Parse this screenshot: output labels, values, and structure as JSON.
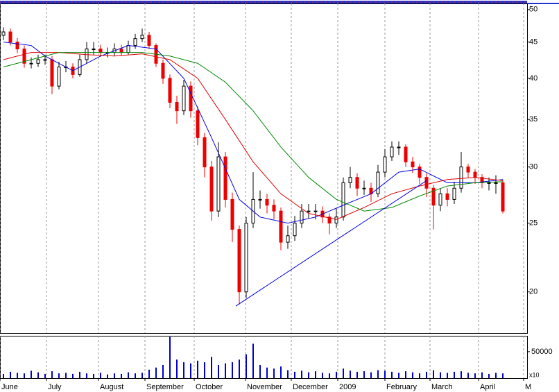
{
  "chart_data": {
    "type": "candlestick",
    "x": [
      0,
      1,
      2,
      3,
      4,
      5,
      6,
      7,
      8,
      9,
      10,
      11,
      12,
      13,
      14,
      15,
      16,
      17,
      18,
      19,
      20,
      21,
      22,
      23,
      24,
      25,
      26,
      27,
      28,
      29,
      30,
      31,
      32,
      33,
      34,
      35,
      36,
      37,
      38,
      39,
      40,
      41,
      42,
      43,
      44,
      45,
      46,
      47,
      48,
      49,
      50,
      51,
      52,
      53,
      54,
      55,
      56,
      57,
      58,
      59,
      60,
      61,
      62,
      63,
      64,
      65,
      66,
      67,
      68,
      69,
      70,
      71,
      72
    ],
    "open": [
      46,
      46.5,
      45,
      44,
      42,
      42,
      42.5,
      42.5,
      39,
      41.5,
      41.5,
      40.5,
      42.5,
      44,
      44,
      43.5,
      43.5,
      44,
      43.5,
      44.5,
      45.5,
      46,
      44.5,
      42,
      40,
      37,
      36,
      39,
      36,
      33,
      30,
      26,
      31,
      27,
      24.5,
      20,
      25,
      27,
      27,
      26.5,
      26,
      23.5,
      24,
      25,
      26,
      26,
      26,
      25.5,
      25,
      25.5,
      28.5,
      29,
      28,
      28,
      27.5,
      29.5,
      31,
      32,
      32,
      30.5,
      30,
      29,
      28,
      26.5,
      27.5,
      27,
      28,
      30,
      29.5,
      29,
      28.5,
      28.5,
      28.5
    ],
    "high": [
      47.2,
      47,
      45.6,
      44.5,
      42.8,
      43.2,
      43.2,
      43,
      42.2,
      42.3,
      42,
      43.2,
      45,
      45,
      44.6,
      44.2,
      44.8,
      44.6,
      45.2,
      46.2,
      47,
      46.5,
      44.8,
      42.5,
      40.5,
      37.8,
      39.8,
      39.6,
      36.5,
      33.5,
      30.6,
      32.5,
      31.5,
      27.6,
      24.8,
      25.5,
      29.5,
      27.8,
      27.5,
      27,
      26.3,
      24.8,
      25.6,
      26.6,
      26.6,
      26.6,
      26.4,
      25.8,
      26.2,
      29,
      30,
      29.4,
      28.7,
      28.5,
      30.2,
      31.8,
      32.6,
      32.6,
      32.3,
      31,
      30.3,
      29.4,
      28.3,
      28,
      28,
      28.6,
      31.5,
      30.3,
      29.8,
      29.3,
      29,
      29.2,
      28.8
    ],
    "low": [
      45.3,
      44.5,
      43.4,
      41.4,
      41.3,
      41.5,
      41.8,
      38,
      38.6,
      40.8,
      40,
      40.2,
      42,
      43.2,
      42.9,
      42.8,
      43,
      43,
      43.2,
      44,
      45,
      44,
      41.5,
      39.3,
      36.3,
      34.5,
      35.5,
      35.2,
      32.2,
      29,
      25.2,
      25.5,
      26.3,
      23.5,
      19.2,
      19.6,
      24.6,
      26.2,
      25.8,
      25.3,
      22.9,
      23,
      23.6,
      24.6,
      25.4,
      25.3,
      25,
      24.1,
      24.6,
      25.2,
      28,
      27.3,
      27.4,
      26.8,
      27.2,
      29,
      30.6,
      31.2,
      30,
      29.4,
      28.4,
      27.2,
      24.5,
      26,
      26.4,
      26.6,
      27.6,
      29,
      28.4,
      28,
      27.8,
      27.5,
      25.8
    ],
    "close": [
      46.5,
      45,
      44,
      42,
      42,
      42.5,
      42.5,
      39,
      41.5,
      41.5,
      40.5,
      42.5,
      44,
      44,
      43.5,
      43.5,
      44,
      43.5,
      44.5,
      45.5,
      46,
      44.5,
      42,
      40,
      37,
      36,
      39,
      36,
      33,
      30,
      26,
      31,
      27,
      24.5,
      20,
      25,
      27,
      27,
      26.5,
      26,
      23.5,
      24,
      25,
      26,
      26,
      26,
      25.5,
      25,
      25.5,
      28.5,
      29,
      28,
      28,
      27.5,
      29.5,
      31,
      32,
      32,
      30.5,
      30,
      29,
      28,
      26.5,
      27.5,
      27,
      28,
      30,
      29.5,
      29,
      28.5,
      28.5,
      28.5,
      26
    ],
    "up_color": "#000000",
    "down_color": "#ee0000",
    "log_scale": true,
    "ylim": [
      17.5,
      51
    ],
    "yticks": [
      20,
      25,
      30,
      35,
      40,
      45,
      50
    ],
    "xlim": [
      -0.5,
      75.5
    ],
    "xticks": [
      {
        "value": -0.5,
        "label": "June"
      },
      {
        "value": 6.2,
        "label": "July"
      },
      {
        "value": 13.7,
        "label": "August"
      },
      {
        "value": 20.4,
        "label": "September"
      },
      {
        "value": 27.5,
        "label": "October"
      },
      {
        "value": 34.9,
        "label": "November"
      },
      {
        "value": 41.5,
        "label": "December"
      },
      {
        "value": 48.2,
        "label": "2009"
      },
      {
        "value": 55,
        "label": "February"
      },
      {
        "value": 61.5,
        "label": "March"
      },
      {
        "value": 68.5,
        "label": "April"
      },
      {
        "value": 75,
        "label": "M"
      }
    ],
    "grid_x": true,
    "series": [
      {
        "color": "#0000dd",
        "x": [
          0,
          4,
          6,
          10,
          14,
          18,
          22,
          26,
          30,
          34,
          37,
          41,
          45,
          49,
          53,
          57,
          60,
          64,
          68,
          72
        ],
        "values": [
          45,
          44.5,
          43,
          41,
          43,
          44.5,
          44,
          40,
          33,
          27,
          25.5,
          25,
          25.5,
          26.5,
          27.5,
          29.5,
          29.8,
          28.5,
          28.5,
          28.8
        ]
      },
      {
        "color": "#dd0000",
        "x": [
          0,
          4,
          8,
          12,
          16,
          20,
          24,
          28,
          32,
          36,
          40,
          44,
          48,
          52,
          56,
          60,
          64,
          68,
          72
        ],
        "values": [
          42.5,
          43.5,
          43.5,
          43.2,
          43,
          43.3,
          42.5,
          40,
          35,
          30.5,
          27.5,
          25.8,
          25.3,
          26.3,
          27.5,
          28.2,
          28.8,
          29,
          28.7
        ]
      },
      {
        "color": "#008800",
        "x": [
          0,
          4,
          8,
          12,
          16,
          20,
          24,
          28,
          32,
          36,
          40,
          44,
          48,
          52,
          56,
          60,
          64,
          68,
          72
        ],
        "values": [
          41.5,
          42.5,
          43.5,
          43.5,
          43.5,
          43.5,
          43,
          42,
          39.5,
          36,
          32,
          29,
          27,
          26,
          26.3,
          27.3,
          28.2,
          28.5,
          28.6
        ]
      }
    ],
    "trendline": {
      "color": "#0000dd",
      "x": [
        33.5,
        61
      ],
      "values": [
        19.1,
        28.7
      ]
    },
    "volume": {
      "color": "#0000cc",
      "ylim": [
        0,
        80000
      ],
      "yticks": [
        50000
      ],
      "label": "x10",
      "values": [
        8000,
        12000,
        10000,
        9000,
        14000,
        11000,
        8000,
        13000,
        9000,
        10000,
        8000,
        12000,
        9000,
        8000,
        10000,
        7000,
        9000,
        8000,
        11000,
        9000,
        10000,
        16000,
        20000,
        25000,
        78000,
        35000,
        30000,
        28000,
        33000,
        30000,
        40000,
        25000,
        28000,
        30000,
        35000,
        45000,
        65000,
        25000,
        20000,
        18000,
        22000,
        15000,
        12000,
        14000,
        11000,
        13000,
        10000,
        9000,
        12000,
        18000,
        14000,
        12000,
        13000,
        11000,
        15000,
        14000,
        12000,
        10000,
        13000,
        11000,
        9000,
        12000,
        15000,
        11000,
        10000,
        12000,
        13000,
        10000,
        9000,
        11000,
        8000,
        10000,
        9000
      ]
    }
  }
}
